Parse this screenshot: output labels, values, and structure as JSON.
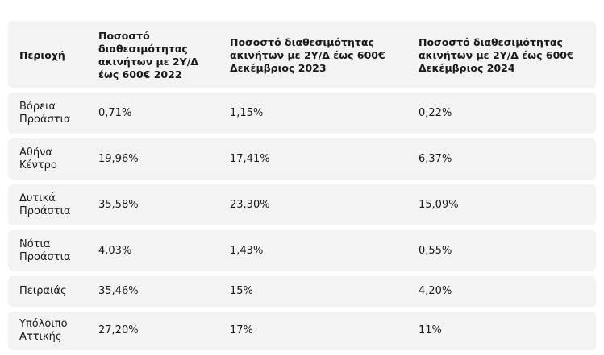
{
  "table": {
    "headers": [
      "Περιοχή",
      "Ποσοστό διαθεσιμότητας ακινήτων με 2Υ/Δ έως 600€ 2022",
      "Ποσοστό διαθεσιμότητας ακινήτων με 2Υ/Δ έως 600€ Δεκέμβριος 2023",
      "Ποσοστό διαθεσιμότητας ακινήτων με 2Υ/Δ έως 600€ Δεκέμβριος 2024"
    ],
    "rows": [
      [
        "Βόρεια Προάστια",
        "0,71%",
        "1,15%",
        "0,22%"
      ],
      [
        "Αθήνα Κέντρο",
        "19,96%",
        "17,41%",
        "6,37%"
      ],
      [
        "Δυτικά Προάστια",
        "35,58%",
        "23,30%",
        "15,09%"
      ],
      [
        "Νότια Προάστια",
        "4,03%",
        "1,43%",
        "0,55%"
      ],
      [
        "Πειραιάς",
        "35,46%",
        "15%",
        "4,20%"
      ],
      [
        "Υπόλοιπο Αττικής",
        "27,20%",
        "17%",
        "11%"
      ]
    ]
  }
}
